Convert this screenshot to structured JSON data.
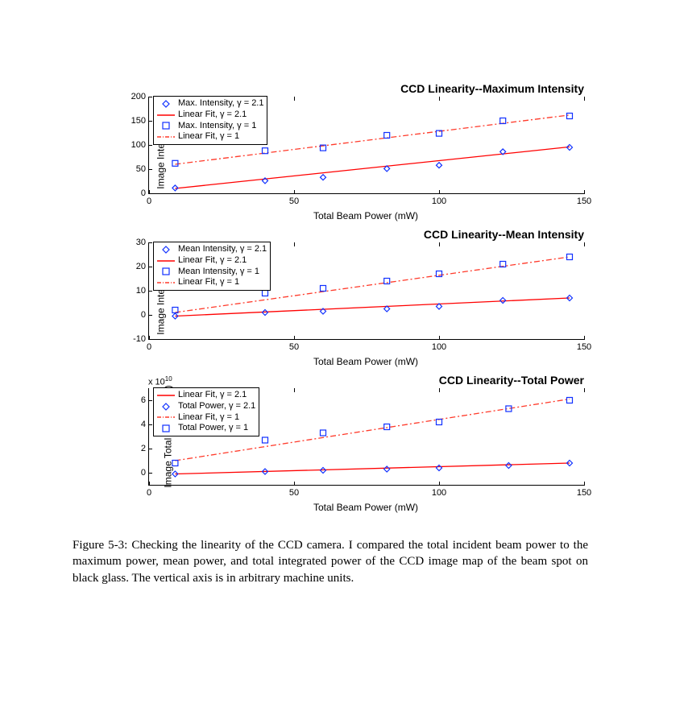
{
  "colors": {
    "line_solid": "#ff0000",
    "line_dash": "#ff3a2a",
    "marker_diamond": "#1030ff",
    "marker_square": "#1030ff",
    "axis": "#000000",
    "bg": "#ffffff"
  },
  "line_width": 1.3,
  "marker_size": 7,
  "dash_pattern": "7 3 2 3",
  "charts": [
    {
      "title": "CCD Linearity--Maximum Intensity",
      "ylabel": "Image Intensity (mu)",
      "xlabel": "Total Beam Power (mW)",
      "xlim": [
        0,
        150
      ],
      "xticks": [
        0,
        50,
        100,
        150
      ],
      "ylim": [
        0,
        200
      ],
      "yticks": [
        0,
        50,
        100,
        150,
        200
      ],
      "topticks": [
        50,
        100,
        150
      ],
      "exp": null,
      "legend": [
        {
          "type": "diamond",
          "color_key": "marker_diamond",
          "label": "Max. Intensity, γ = 2.1"
        },
        {
          "type": "solid",
          "color_key": "line_solid",
          "label": "Linear Fit, γ = 2.1"
        },
        {
          "type": "square",
          "color_key": "marker_square",
          "label": "Max. Intensity, γ = 1"
        },
        {
          "type": "dash",
          "color_key": "line_dash",
          "label": "Linear Fit, γ = 1"
        }
      ],
      "series": [
        {
          "kind": "line",
          "style": "solid",
          "color_key": "line_solid",
          "pts": [
            [
              9,
              10
            ],
            [
              145,
              96
            ]
          ]
        },
        {
          "kind": "line",
          "style": "dash",
          "color_key": "line_dash",
          "pts": [
            [
              9,
              60
            ],
            [
              145,
              162
            ]
          ]
        },
        {
          "kind": "marker",
          "shape": "diamond",
          "color_key": "marker_diamond",
          "pts": [
            [
              9,
              11
            ],
            [
              40,
              26
            ],
            [
              60,
              33
            ],
            [
              82,
              51
            ],
            [
              100,
              58
            ],
            [
              122,
              86
            ],
            [
              145,
              95
            ]
          ]
        },
        {
          "kind": "marker",
          "shape": "square",
          "color_key": "marker_square",
          "pts": [
            [
              9,
              62
            ],
            [
              40,
              88
            ],
            [
              60,
              94
            ],
            [
              82,
              120
            ],
            [
              100,
              124
            ],
            [
              122,
              150
            ],
            [
              145,
              160
            ]
          ]
        }
      ]
    },
    {
      "title": "CCD Linearity--Mean Intensity",
      "ylabel": "Image Intensity (mu)",
      "xlabel": "Total Beam Power (mW)",
      "xlim": [
        0,
        150
      ],
      "xticks": [
        0,
        50,
        100,
        150
      ],
      "ylim": [
        -10,
        30
      ],
      "yticks": [
        -10,
        0,
        10,
        20,
        30
      ],
      "topticks": [
        50,
        100,
        150
      ],
      "exp": null,
      "legend": [
        {
          "type": "diamond",
          "color_key": "marker_diamond",
          "label": "Mean Intensity, γ = 2.1"
        },
        {
          "type": "solid",
          "color_key": "line_solid",
          "label": "Linear Fit, γ = 2.1"
        },
        {
          "type": "square",
          "color_key": "marker_square",
          "label": "Mean Intensity, γ = 1"
        },
        {
          "type": "dash",
          "color_key": "line_dash",
          "label": "Linear Fit, γ = 1"
        }
      ],
      "series": [
        {
          "kind": "line",
          "style": "solid",
          "color_key": "line_solid",
          "pts": [
            [
              9,
              -0.5
            ],
            [
              145,
              7
            ]
          ]
        },
        {
          "kind": "line",
          "style": "dash",
          "color_key": "line_dash",
          "pts": [
            [
              9,
              1
            ],
            [
              145,
              24
            ]
          ]
        },
        {
          "kind": "marker",
          "shape": "diamond",
          "color_key": "marker_diamond",
          "pts": [
            [
              9,
              -0.5
            ],
            [
              40,
              1
            ],
            [
              60,
              1.5
            ],
            [
              82,
              2.5
            ],
            [
              100,
              3.5
            ],
            [
              122,
              6
            ],
            [
              145,
              7
            ]
          ]
        },
        {
          "kind": "marker",
          "shape": "square",
          "color_key": "marker_square",
          "pts": [
            [
              9,
              2
            ],
            [
              40,
              9
            ],
            [
              60,
              11
            ],
            [
              82,
              14
            ],
            [
              100,
              17
            ],
            [
              122,
              21
            ],
            [
              145,
              24
            ]
          ]
        }
      ]
    },
    {
      "title": "CCD Linearity--Total Power",
      "ylabel": "Image Total Power (mu)",
      "xlabel": "Total Beam Power (mW)",
      "xlim": [
        0,
        150
      ],
      "xticks": [
        0,
        50,
        100,
        150
      ],
      "ylim": [
        -1,
        7
      ],
      "yticks": [
        0,
        2,
        4,
        6
      ],
      "topticks": [
        50,
        100,
        150
      ],
      "exp": "x 10^10",
      "legend": [
        {
          "type": "solid",
          "color_key": "line_solid",
          "label": "Linear Fit, γ = 2.1"
        },
        {
          "type": "diamond",
          "color_key": "marker_diamond",
          "label": "Total Power, γ = 2.1"
        },
        {
          "type": "dash",
          "color_key": "line_dash",
          "label": "Linear Fit, γ = 1"
        },
        {
          "type": "square",
          "color_key": "marker_square",
          "label": "Total Power, γ = 1"
        }
      ],
      "series": [
        {
          "kind": "line",
          "style": "solid",
          "color_key": "line_solid",
          "pts": [
            [
              9,
              -0.1
            ],
            [
              145,
              0.8
            ]
          ]
        },
        {
          "kind": "line",
          "style": "dash",
          "color_key": "line_dash",
          "pts": [
            [
              9,
              1.0
            ],
            [
              145,
              6.1
            ]
          ]
        },
        {
          "kind": "marker",
          "shape": "diamond",
          "color_key": "marker_diamond",
          "pts": [
            [
              9,
              -0.1
            ],
            [
              40,
              0.1
            ],
            [
              60,
              0.2
            ],
            [
              82,
              0.3
            ],
            [
              100,
              0.4
            ],
            [
              124,
              0.6
            ],
            [
              145,
              0.8
            ]
          ]
        },
        {
          "kind": "marker",
          "shape": "square",
          "color_key": "marker_square",
          "pts": [
            [
              9,
              0.8
            ],
            [
              40,
              2.7
            ],
            [
              60,
              3.3
            ],
            [
              82,
              3.8
            ],
            [
              100,
              4.2
            ],
            [
              124,
              5.3
            ],
            [
              145,
              6.0
            ]
          ]
        }
      ]
    }
  ],
  "caption_label": "Figure 5-3:",
  "caption_body": "Checking the linearity of the CCD camera. I compared the total incident beam power to the maximum power, mean power, and total integrated power of the CCD image map of the beam spot on black glass. The vertical axis is in arbitrary machine units."
}
